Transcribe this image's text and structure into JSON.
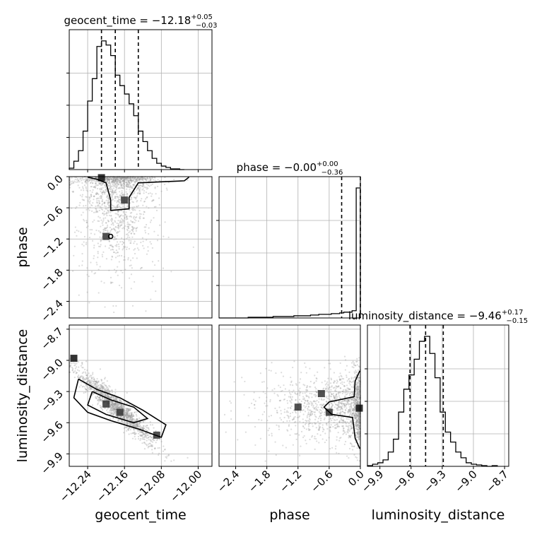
{
  "chart_data": {
    "type": "corner",
    "parameters": [
      "geocent_time",
      "phase",
      "luminosity_distance"
    ],
    "titles": {
      "geocent_time": {
        "prefix": "geocent_time = ",
        "value": "−12.18",
        "sup": "+0.05",
        "sub": "−0.03"
      },
      "phase": {
        "prefix": "phase = ",
        "value": "−0.00",
        "sup": "+0.00",
        "sub": "−0.36"
      },
      "luminosity_distance": {
        "prefix": "luminosity_distance = ",
        "value": "−9.46",
        "sup": "+0.17",
        "sub": "−0.15"
      }
    },
    "axis_labels": {
      "geocent_time": "geocent_time",
      "phase": "phase",
      "luminosity_distance": "luminosity_distance"
    },
    "ranges": {
      "geocent_time": [
        -12.28,
        -11.97
      ],
      "phase": [
        -2.72,
        0.0
      ],
      "luminosity_distance": [
        -10.02,
        -8.66
      ]
    },
    "ticks": {
      "geocent_time": {
        "values": [
          -12.24,
          -12.16,
          -12.08,
          -12.0
        ],
        "labels": [
          "−12.24",
          "−12.16",
          "−12.08",
          "−12.00"
        ]
      },
      "phase": {
        "values": [
          -2.4,
          -1.8,
          -1.2,
          -0.6,
          0.0
        ],
        "labels": [
          "−2.4",
          "−1.8",
          "−1.2",
          "−0.6",
          "0.0"
        ]
      },
      "luminosity_distance": {
        "values": [
          -9.9,
          -9.6,
          -9.3,
          -9.0,
          -8.7
        ],
        "labels": [
          "−9.9",
          "−9.6",
          "−9.3",
          "−9.0",
          "−8.7"
        ]
      }
    },
    "quantiles": {
      "geocent_time": [
        -12.21,
        -12.18,
        -12.13
      ],
      "phase": [
        -0.36,
        -0.0
      ],
      "luminosity_distance": [
        -9.61,
        -9.46,
        -9.29
      ]
    },
    "histograms": {
      "geocent_time": {
        "edges": [
          -12.28,
          -12.27,
          -12.26,
          -12.25,
          -12.24,
          -12.23,
          -12.22,
          -12.21,
          -12.2,
          -12.19,
          -12.18,
          -12.17,
          -12.16,
          -12.15,
          -12.14,
          -12.13,
          -12.12,
          -12.11,
          -12.1,
          -12.09,
          -12.08,
          -12.07,
          -12.06,
          -12.05,
          -12.04,
          -12.03
        ],
        "counts": [
          2,
          12,
          27,
          55,
          98,
          130,
          176,
          184,
          178,
          163,
          135,
          120,
          108,
          94,
          77,
          55,
          40,
          27,
          16,
          9,
          5,
          3,
          1,
          1,
          0
        ]
      },
      "phase": {
        "edges": [
          -2.72,
          -2.64,
          -2.56,
          -2.48,
          -2.4,
          -2.32,
          -2.24,
          -2.16,
          -2.08,
          -2.0,
          -1.92,
          -1.84,
          -1.76,
          -1.68,
          -1.6,
          -1.52,
          -1.44,
          -1.36,
          -1.28,
          -1.2,
          -1.12,
          -1.04,
          -0.96,
          -0.88,
          -0.8,
          -0.72,
          -0.64,
          -0.56,
          -0.48,
          -0.4,
          -0.32,
          -0.24,
          -0.16,
          -0.08,
          0.0
        ],
        "counts": [
          0,
          0,
          0,
          0,
          0,
          0,
          0,
          1,
          1,
          1,
          1,
          1,
          1,
          2,
          2,
          2,
          2,
          2,
          3,
          3,
          3,
          3,
          4,
          4,
          5,
          5,
          5,
          6,
          6,
          7,
          8,
          8,
          10,
          180
        ]
      },
      "luminosity_distance": {
        "edges": [
          -10.02,
          -9.97,
          -9.92,
          -9.87,
          -9.82,
          -9.77,
          -9.72,
          -9.67,
          -9.62,
          -9.57,
          -9.52,
          -9.47,
          -9.42,
          -9.37,
          -9.32,
          -9.27,
          -9.22,
          -9.17,
          -9.12,
          -9.07,
          -9.02,
          -8.97,
          -8.92,
          -8.87,
          -8.82,
          -8.77
        ],
        "counts": [
          1,
          3,
          5,
          9,
          20,
          38,
          76,
          108,
          128,
          150,
          175,
          182,
          158,
          124,
          76,
          48,
          34,
          20,
          12,
          5,
          3,
          2,
          1,
          0,
          1
        ]
      }
    },
    "density_peaks": [
      {
        "x": "geocent_time",
        "y": "phase",
        "points": [
          [
            -12.21,
            -0.02
          ],
          [
            -12.16,
            -0.45
          ],
          [
            -12.2,
            -1.15
          ]
        ]
      },
      {
        "x": "geocent_time",
        "y": "luminosity_distance",
        "points": [
          [
            -12.27,
            -8.98
          ],
          [
            -12.2,
            -9.42
          ],
          [
            -12.17,
            -9.5
          ],
          [
            -12.09,
            -9.72
          ]
        ]
      },
      {
        "x": "phase",
        "y": "luminosity_distance",
        "points": [
          [
            -0.02,
            -9.46
          ],
          [
            -0.6,
            -9.5
          ],
          [
            -1.2,
            -9.45
          ],
          [
            -0.75,
            -9.32
          ]
        ]
      }
    ],
    "colors": {
      "line": "#000000",
      "grid": "#b0b0b0",
      "points": "#9a9a9a"
    }
  }
}
